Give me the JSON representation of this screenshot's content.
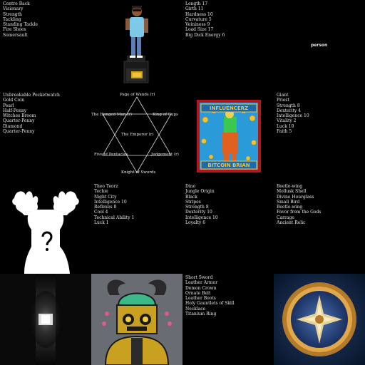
{
  "grid": {
    "col1_row1_list": [
      "Centre Back",
      "Visionary",
      "Strength",
      "Tackling",
      "Standing Tackle",
      "Fire Shoes",
      "Somersault"
    ],
    "col3_row1_list": [
      "Length 17",
      "Girth 11",
      "Hardness 10",
      "Curvature 5",
      "Veininess 9",
      "Load Size 17",
      "Big Dick Energy 6"
    ],
    "col4_row1_label": "person",
    "col1_row2_list": [
      "Unbreakable Pocketwatch",
      "Gold Coin",
      "Pearl",
      "Half-Penny",
      "Witches Broom",
      "Quarter-Penny",
      "Diamond",
      "Quarter-Penny"
    ],
    "tarot": {
      "top": "Page of Wands (r)",
      "left_upper": "The Hanged Man (r)",
      "right_upper": "King of Cups",
      "center": "The Emperor (r)",
      "left_lower": "Five of Pentacles",
      "right_lower": "Judgement (r)",
      "bottom": "Knight of Swords"
    },
    "influencer_card": {
      "top_text": "INFLUENCERZ",
      "bottom_text": "BITCOIN BRIAN"
    },
    "col4_row2_list": [
      "Giant",
      "Priest",
      "Strength 8",
      "Dexterity 4",
      "Intelligence 10",
      "Vitality 2",
      "Luck 10",
      "Faith 5"
    ],
    "col2_row3_list": [
      "Theo Teorz",
      "Techie",
      "Night City",
      "Intelligence 10",
      "Reflexes 8",
      "Cool 4",
      "Technical Ability 1",
      "Luck 1"
    ],
    "col3_row3_list": [
      "Dino",
      "Jungle Origin",
      "Black",
      "Stripes",
      "Strength 8",
      "Dexterity 10",
      "Intelligence 10",
      "Loyalty 6"
    ],
    "col4_row3_list": [
      "Beetle-wing",
      "Mollusk Shell",
      "Divine Hourglass",
      "Small Bird",
      "Beetle-wing",
      "Favor from the Gods",
      "Carrage",
      "Ancient Relic"
    ],
    "col3_row4_list": [
      "Short Sword",
      "Leather Armor",
      "Demon Crown",
      "Ornate Belt",
      "Leather Boots",
      "Holy Gauntlets of Skill",
      "Necklace",
      "Titanium Ring"
    ],
    "moose_glyph": "?"
  }
}
